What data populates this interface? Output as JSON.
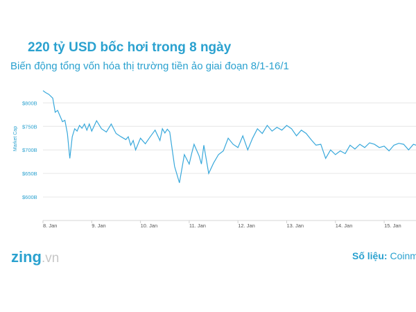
{
  "header": {
    "title": "220 tỷ USD bốc hơi trong 8 ngày",
    "subtitle": "Biến động tổng vốn hóa thị trường tiền ảo giai đoạn 8/1-16/1"
  },
  "footer": {
    "logo_main": "zing",
    "logo_suffix": ".vn",
    "source_label": "Số liệu:",
    "source_value": "Coinma"
  },
  "colors": {
    "accent": "#2aa1cf",
    "line": "#38a8db",
    "grid": "#e6e6e6"
  },
  "chart_data": {
    "type": "line",
    "title": "",
    "xlabel": "",
    "ylabel": "Market Cap",
    "x_ticks": [
      "8. Jan",
      "9. Jan",
      "10. Jan",
      "11. Jan",
      "12. Jan",
      "13. Jan",
      "14. Jan",
      "15. Jan"
    ],
    "y_ticks": [
      "$600B",
      "$650B",
      "$700B",
      "$750B",
      "$800B"
    ],
    "y_tick_values": [
      600,
      650,
      700,
      750,
      800
    ],
    "ylim": [
      550,
      830
    ],
    "xlim": [
      0,
      7.75
    ],
    "grid": true,
    "legend": "none",
    "series": [
      {
        "x": [
          0.0,
          0.05,
          0.12,
          0.2,
          0.25,
          0.3,
          0.35,
          0.4,
          0.45,
          0.5,
          0.55,
          0.6,
          0.65,
          0.7,
          0.75,
          0.8,
          0.85,
          0.9,
          0.95,
          1.0,
          1.1,
          1.2,
          1.3,
          1.4,
          1.5,
          1.6,
          1.7,
          1.75,
          1.8,
          1.85,
          1.9,
          2.0,
          2.1,
          2.2,
          2.3,
          2.4,
          2.45,
          2.5,
          2.55,
          2.6,
          2.7,
          2.8,
          2.9,
          3.0,
          3.05,
          3.1,
          3.15,
          3.2,
          3.25,
          3.3,
          3.4,
          3.5,
          3.6,
          3.7,
          3.8,
          3.9,
          4.0,
          4.1,
          4.2,
          4.3,
          4.4,
          4.5,
          4.6,
          4.7,
          4.8,
          4.9,
          5.0,
          5.1,
          5.2,
          5.3,
          5.4,
          5.5,
          5.6,
          5.7,
          5.8,
          5.9,
          6.0,
          6.1,
          6.2,
          6.3,
          6.4,
          6.5,
          6.6,
          6.7,
          6.8,
          6.9,
          7.0,
          7.1,
          7.2,
          7.3,
          7.4,
          7.5,
          7.6,
          7.75
        ],
        "y": [
          826,
          822,
          818,
          810,
          780,
          784,
          772,
          760,
          763,
          735,
          682,
          728,
          745,
          740,
          752,
          746,
          755,
          742,
          755,
          740,
          762,
          745,
          738,
          755,
          735,
          728,
          722,
          728,
          710,
          720,
          700,
          725,
          713,
          728,
          742,
          720,
          745,
          736,
          744,
          738,
          665,
          630,
          690,
          670,
          692,
          712,
          700,
          688,
          670,
          710,
          650,
          672,
          690,
          698,
          725,
          712,
          705,
          730,
          700,
          725,
          745,
          735,
          752,
          740,
          748,
          742,
          752,
          745,
          730,
          742,
          735,
          722,
          710,
          712,
          682,
          700,
          690,
          698,
          692,
          710,
          702,
          712,
          705,
          715,
          712,
          705,
          708,
          698,
          710,
          714,
          712,
          700,
          712,
          710
        ]
      }
    ]
  }
}
